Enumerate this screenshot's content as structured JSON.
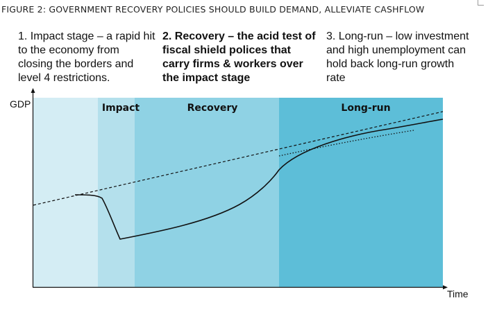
{
  "figure": {
    "title": "FIGURE 2: GOVERNMENT RECOVERY POLICIES SHOULD BUILD DEMAND, ALLEVIATE CASHFLOW"
  },
  "stages": [
    {
      "text": "1. Impact stage – a rapid hit to the economy from closing the borders and level 4 restrictions."
    },
    {
      "text": "2. Recovery – the acid test of fiscal shield polices that carry firms & workers over the impact stage"
    },
    {
      "text": "3. Long-run – low investment and high unemployment can hold back long-run growth rate"
    }
  ],
  "phases": [
    {
      "label": "",
      "color": "#d4edf4"
    },
    {
      "label": "Impact",
      "color": "#b4e0ec"
    },
    {
      "label": "Recovery",
      "color": "#8fd2e4"
    },
    {
      "label": "Long-run",
      "color": "#5dbed8"
    }
  ],
  "axes": {
    "y_label": "GDP",
    "x_label": "Time"
  },
  "colors": {
    "line": "#111111",
    "axis": "#111111"
  }
}
